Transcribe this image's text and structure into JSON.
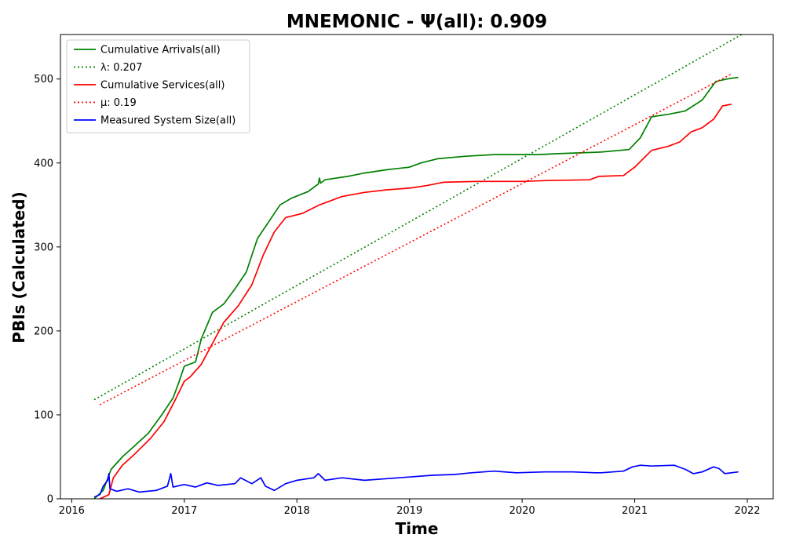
{
  "chart_data": {
    "type": "line",
    "title": "MNEMONIC -  Ψ(all): 0.909",
    "xlabel": "Time",
    "ylabel": "PBIs (Calculated)",
    "xlim": [
      2015.9,
      2022.23
    ],
    "ylim": [
      0,
      553
    ],
    "x_ticks": [
      2016,
      2017,
      2018,
      2019,
      2020,
      2021,
      2022
    ],
    "x_tick_labels": [
      "2016",
      "2017",
      "2018",
      "2019",
      "2020",
      "2021",
      "2022"
    ],
    "y_ticks": [
      0,
      100,
      200,
      300,
      400,
      500
    ],
    "y_tick_labels": [
      "0",
      "100",
      "200",
      "300",
      "400",
      "500"
    ],
    "grid": false,
    "legend_position": "top-left",
    "series": [
      {
        "name": "Cumulative Arrivals(all)",
        "color": "#008000",
        "style": "solid",
        "points": [
          [
            2016.2,
            0
          ],
          [
            2016.28,
            10
          ],
          [
            2016.35,
            35
          ],
          [
            2016.45,
            50
          ],
          [
            2016.55,
            62
          ],
          [
            2016.68,
            78
          ],
          [
            2016.8,
            100
          ],
          [
            2016.9,
            120
          ],
          [
            2016.95,
            138
          ],
          [
            2017.0,
            158
          ],
          [
            2017.1,
            163
          ],
          [
            2017.15,
            190
          ],
          [
            2017.25,
            222
          ],
          [
            2017.35,
            232
          ],
          [
            2017.45,
            250
          ],
          [
            2017.55,
            270
          ],
          [
            2017.65,
            310
          ],
          [
            2017.75,
            330
          ],
          [
            2017.85,
            350
          ],
          [
            2017.95,
            358
          ],
          [
            2018.1,
            366
          ],
          [
            2018.19,
            375
          ],
          [
            2018.2,
            382
          ],
          [
            2018.21,
            376
          ],
          [
            2018.25,
            380
          ],
          [
            2018.45,
            384
          ],
          [
            2018.6,
            388
          ],
          [
            2018.8,
            392
          ],
          [
            2019.0,
            395
          ],
          [
            2019.1,
            400
          ],
          [
            2019.25,
            405
          ],
          [
            2019.5,
            408
          ],
          [
            2019.75,
            410
          ],
          [
            2020.0,
            410
          ],
          [
            2020.15,
            410
          ],
          [
            2020.3,
            411
          ],
          [
            2020.7,
            413
          ],
          [
            2020.95,
            416
          ],
          [
            2021.05,
            430
          ],
          [
            2021.15,
            455
          ],
          [
            2021.3,
            458
          ],
          [
            2021.45,
            462
          ],
          [
            2021.6,
            475
          ],
          [
            2021.72,
            497
          ],
          [
            2021.82,
            500
          ],
          [
            2021.92,
            502
          ]
        ]
      },
      {
        "name": "λ: 0.207",
        "color": "#008000",
        "style": "dotted",
        "points": [
          [
            2016.2,
            118
          ],
          [
            2021.95,
            553
          ]
        ]
      },
      {
        "name": "Cumulative Services(all)",
        "color": "#ff0000",
        "style": "solid",
        "points": [
          [
            2016.25,
            0
          ],
          [
            2016.3,
            3
          ],
          [
            2016.33,
            5
          ],
          [
            2016.37,
            25
          ],
          [
            2016.45,
            40
          ],
          [
            2016.55,
            52
          ],
          [
            2016.7,
            72
          ],
          [
            2016.82,
            92
          ],
          [
            2016.92,
            118
          ],
          [
            2017.0,
            140
          ],
          [
            2017.05,
            145
          ],
          [
            2017.15,
            160
          ],
          [
            2017.25,
            185
          ],
          [
            2017.35,
            210
          ],
          [
            2017.48,
            230
          ],
          [
            2017.6,
            255
          ],
          [
            2017.7,
            290
          ],
          [
            2017.8,
            318
          ],
          [
            2017.9,
            335
          ],
          [
            2018.05,
            340
          ],
          [
            2018.2,
            350
          ],
          [
            2018.4,
            360
          ],
          [
            2018.6,
            365
          ],
          [
            2018.8,
            368
          ],
          [
            2019.0,
            370
          ],
          [
            2019.15,
            373
          ],
          [
            2019.3,
            377
          ],
          [
            2019.6,
            378
          ],
          [
            2020.0,
            378
          ],
          [
            2020.2,
            379
          ],
          [
            2020.6,
            380
          ],
          [
            2020.68,
            384
          ],
          [
            2020.9,
            385
          ],
          [
            2021.0,
            395
          ],
          [
            2021.15,
            415
          ],
          [
            2021.3,
            420
          ],
          [
            2021.4,
            425
          ],
          [
            2021.5,
            437
          ],
          [
            2021.6,
            442
          ],
          [
            2021.7,
            452
          ],
          [
            2021.78,
            468
          ],
          [
            2021.86,
            470
          ]
        ]
      },
      {
        "name": "μ: 0.19",
        "color": "#ff0000",
        "style": "dotted",
        "points": [
          [
            2016.25,
            112
          ],
          [
            2021.86,
            506
          ]
        ]
      },
      {
        "name": "Measured System Size(all)",
        "color": "#0000ff",
        "style": "solid",
        "points": [
          [
            2016.2,
            2
          ],
          [
            2016.25,
            5
          ],
          [
            2016.28,
            15
          ],
          [
            2016.32,
            22
          ],
          [
            2016.33,
            30
          ],
          [
            2016.34,
            12
          ],
          [
            2016.4,
            9
          ],
          [
            2016.5,
            12
          ],
          [
            2016.6,
            8
          ],
          [
            2016.75,
            10
          ],
          [
            2016.85,
            15
          ],
          [
            2016.88,
            30
          ],
          [
            2016.9,
            14
          ],
          [
            2017.0,
            17
          ],
          [
            2017.1,
            14
          ],
          [
            2017.2,
            19
          ],
          [
            2017.3,
            16
          ],
          [
            2017.45,
            18
          ],
          [
            2017.5,
            25
          ],
          [
            2017.6,
            18
          ],
          [
            2017.68,
            25
          ],
          [
            2017.72,
            15
          ],
          [
            2017.8,
            10
          ],
          [
            2017.9,
            18
          ],
          [
            2018.0,
            22
          ],
          [
            2018.15,
            25
          ],
          [
            2018.19,
            30
          ],
          [
            2018.25,
            22
          ],
          [
            2018.4,
            25
          ],
          [
            2018.6,
            22
          ],
          [
            2018.8,
            24
          ],
          [
            2019.0,
            26
          ],
          [
            2019.2,
            28
          ],
          [
            2019.4,
            29
          ],
          [
            2019.55,
            31
          ],
          [
            2019.75,
            33
          ],
          [
            2019.95,
            31
          ],
          [
            2020.2,
            32
          ],
          [
            2020.45,
            32
          ],
          [
            2020.65,
            31
          ],
          [
            2020.7,
            31
          ],
          [
            2020.9,
            33
          ],
          [
            2020.98,
            38
          ],
          [
            2021.05,
            40
          ],
          [
            2021.15,
            39
          ],
          [
            2021.35,
            40
          ],
          [
            2021.45,
            35
          ],
          [
            2021.52,
            30
          ],
          [
            2021.6,
            32
          ],
          [
            2021.7,
            38
          ],
          [
            2021.75,
            36
          ],
          [
            2021.8,
            30
          ],
          [
            2021.92,
            32
          ]
        ]
      }
    ]
  }
}
